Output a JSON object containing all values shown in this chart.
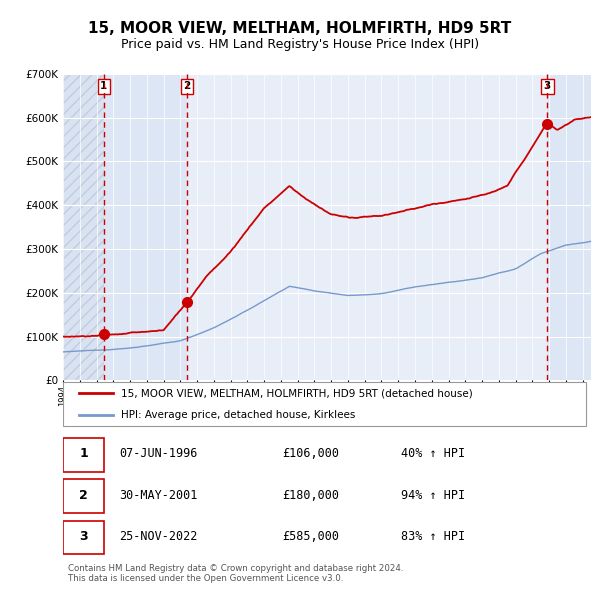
{
  "title": "15, MOOR VIEW, MELTHAM, HOLMFIRTH, HD9 5RT",
  "subtitle": "Price paid vs. HM Land Registry's House Price Index (HPI)",
  "title_fontsize": 11,
  "subtitle_fontsize": 9,
  "background_color": "#ffffff",
  "plot_bg_color": "#e8eef8",
  "hatch_color": "#d8e2f0",
  "grid_color": "#ffffff",
  "ylim": [
    0,
    700000
  ],
  "yticks": [
    0,
    100000,
    200000,
    300000,
    400000,
    500000,
    600000,
    700000
  ],
  "ytick_labels": [
    "£0",
    "£100K",
    "£200K",
    "£300K",
    "£400K",
    "£500K",
    "£600K",
    "£700K"
  ],
  "legend_entry1": "15, MOOR VIEW, MELTHAM, HOLMFIRTH, HD9 5RT (detached house)",
  "legend_entry2": "HPI: Average price, detached house, Kirklees",
  "line1_color": "#cc0000",
  "line2_color": "#7799cc",
  "sale_color": "#cc0000",
  "vline_color": "#cc0000",
  "transactions": [
    {
      "num": 1,
      "date": "07-JUN-1996",
      "price": 106000,
      "pct": "40%",
      "year_x": 1996.44
    },
    {
      "num": 2,
      "date": "30-MAY-2001",
      "price": 180000,
      "pct": "94%",
      "year_x": 2001.41
    },
    {
      "num": 3,
      "date": "25-NOV-2022",
      "price": 585000,
      "pct": "83%",
      "year_x": 2022.9
    }
  ],
  "footnote1": "Contains HM Land Registry data © Crown copyright and database right 2024.",
  "footnote2": "This data is licensed under the Open Government Licence v3.0.",
  "xlim_start": 1994.0,
  "xlim_end": 2025.5
}
